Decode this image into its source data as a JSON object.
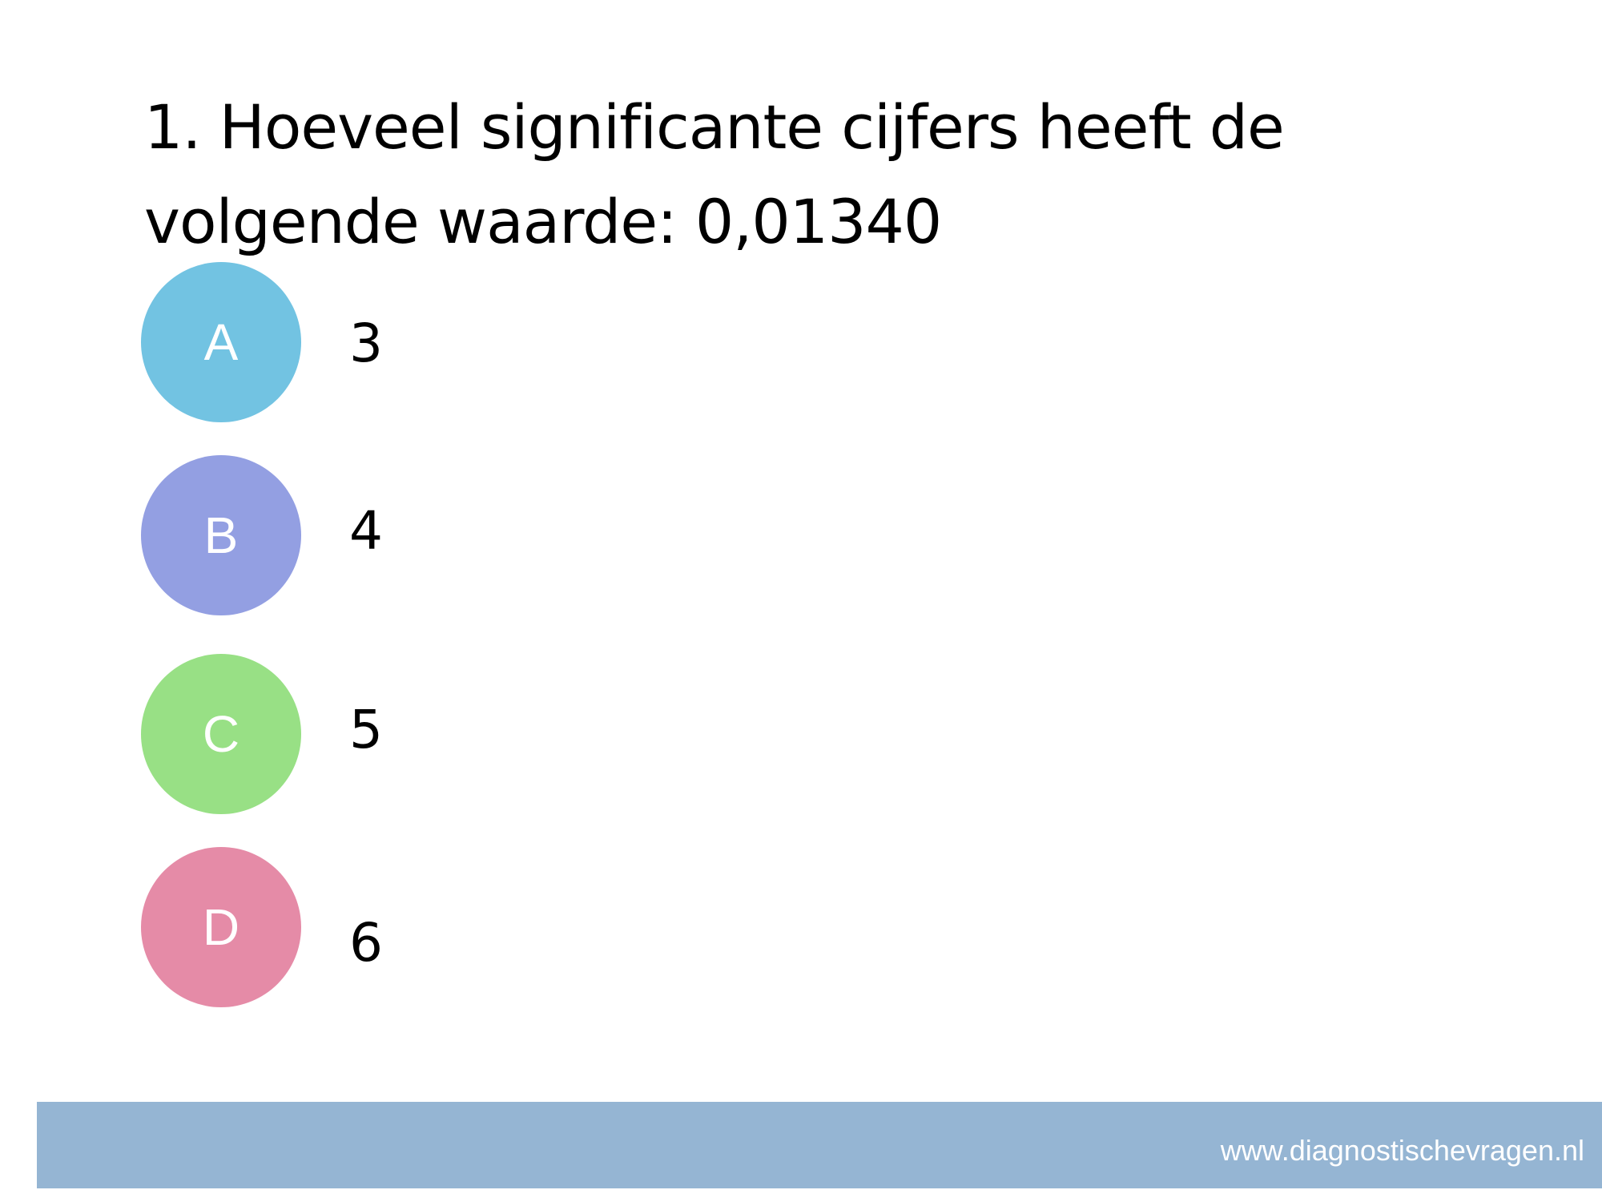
{
  "question": {
    "text": "1. Hoeveel significante cijfers heeft de volgende waarde: 0,01340"
  },
  "options": [
    {
      "letter": "A",
      "answer": "3",
      "color": "#72c3e2"
    },
    {
      "letter": "B",
      "answer": "4",
      "color": "#939fe2"
    },
    {
      "letter": "C",
      "answer": "5",
      "color": "#98e085"
    },
    {
      "letter": "D",
      "answer": "6",
      "color": "#e58ba7"
    }
  ],
  "footer": {
    "url": "www.diagnostischevragen.nl",
    "color": "#95b5d3"
  }
}
